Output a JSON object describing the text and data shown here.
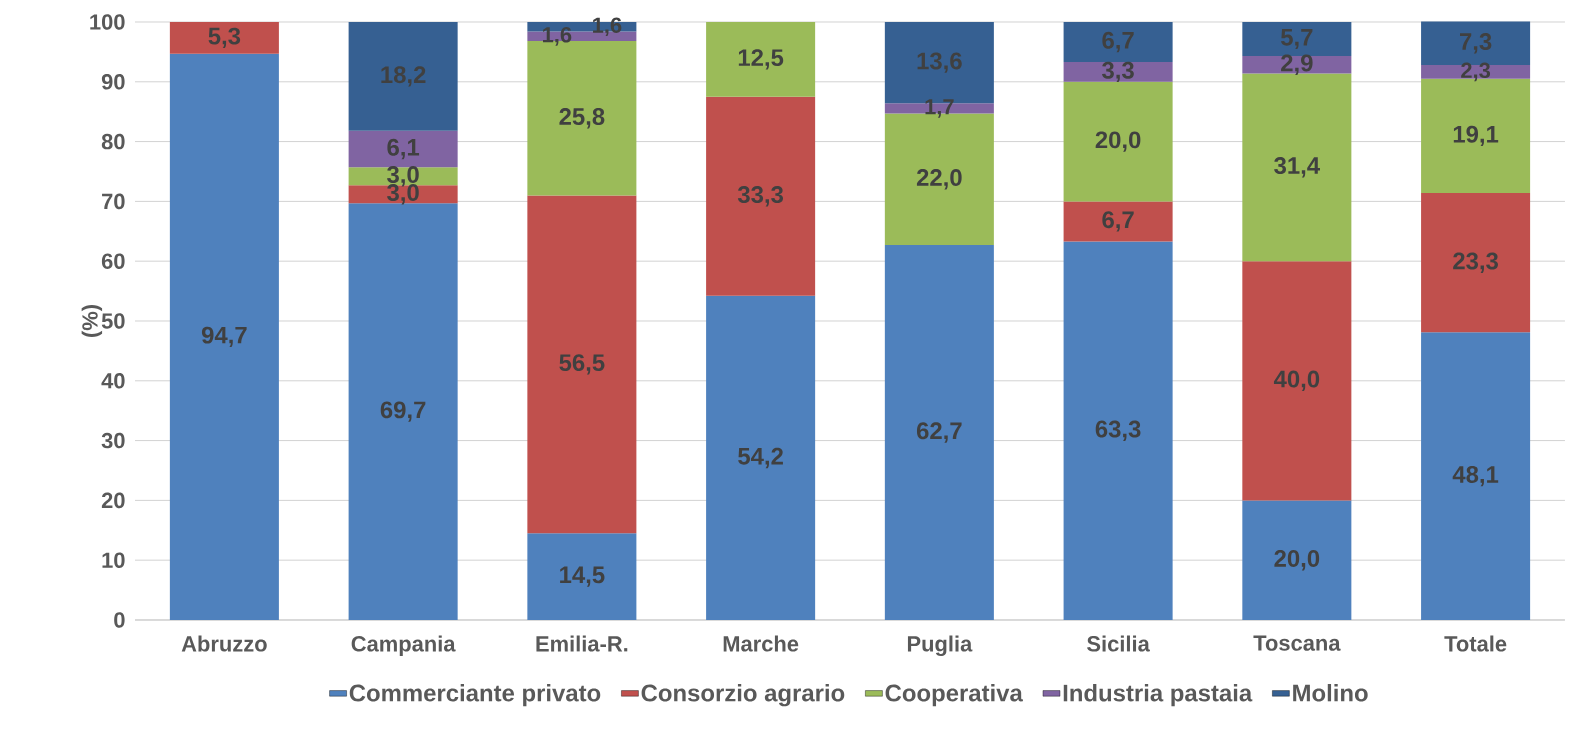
{
  "chart_data": {
    "type": "bar",
    "stacked": true,
    "ylabel": "(%)",
    "categories": [
      "Abruzzo",
      "Campania",
      "Emilia-R.",
      "Marche",
      "Puglia",
      "Sicilia",
      "Toscana",
      "Totale"
    ],
    "series": [
      {
        "name": "Commerciante privato",
        "color": "#4f81bd",
        "values": [
          94.7,
          69.7,
          14.5,
          54.2,
          62.7,
          63.3,
          20.0,
          48.1
        ],
        "value_labels": [
          "94,7",
          "69,7",
          "14,5",
          "54,2",
          "62,7",
          "63,3",
          "20,0",
          "48,1"
        ]
      },
      {
        "name": "Consorzio agrario",
        "color": "#c0504d",
        "values": [
          5.3,
          3.0,
          56.5,
          33.3,
          null,
          6.7,
          40.0,
          23.3
        ],
        "value_labels": [
          "5,3",
          "3,0",
          "56,5",
          "33,3",
          null,
          "6,7",
          "40,0",
          "23,3"
        ]
      },
      {
        "name": "Cooperativa",
        "color": "#9bbb59",
        "values": [
          null,
          3.0,
          25.8,
          12.5,
          22.0,
          20.0,
          31.4,
          19.1
        ],
        "value_labels": [
          null,
          "3,0",
          "25,8",
          "12,5",
          "22,0",
          "20,0",
          "31,4",
          "19,1"
        ]
      },
      {
        "name": "Industria pastaia",
        "color": "#8064a2",
        "values": [
          null,
          6.1,
          1.6,
          null,
          1.7,
          3.3,
          2.9,
          2.3
        ],
        "value_labels": [
          null,
          "6,1",
          "1,6",
          null,
          "1,7",
          "3,3",
          "2,9",
          "2,3"
        ]
      },
      {
        "name": "Molino",
        "color": "#366092",
        "values": [
          null,
          18.2,
          1.6,
          null,
          13.6,
          6.7,
          5.7,
          7.3
        ],
        "value_labels": [
          null,
          "18,2",
          "1,6",
          null,
          "13,6",
          "6,7",
          "5,7",
          "7,3"
        ]
      }
    ],
    "ylim": [
      0,
      100
    ],
    "yticks": [
      0,
      10,
      20,
      30,
      40,
      50,
      60,
      70,
      80,
      90,
      100
    ],
    "grid": "y",
    "legend": "bottom"
  }
}
